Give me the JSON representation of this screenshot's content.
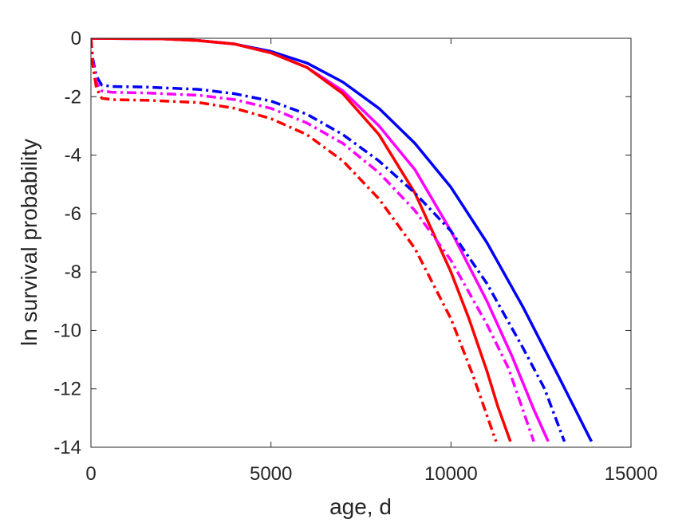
{
  "chart_data": {
    "type": "line",
    "title": "",
    "xlabel": "age, d",
    "ylabel": "ln survival probability",
    "xlim": [
      0,
      15000
    ],
    "ylim": [
      -14,
      0
    ],
    "xticks": [
      0,
      5000,
      10000,
      15000
    ],
    "xtick_labels": [
      "0",
      "5000",
      "10000",
      "15000"
    ],
    "yticks": [
      0,
      -2,
      -4,
      -6,
      -8,
      -10,
      -12,
      -14
    ],
    "ytick_labels": [
      "0",
      "-2",
      "-4",
      "-6",
      "-8",
      "-10",
      "-12",
      "-14"
    ],
    "grid": false,
    "legend": "none",
    "series": [
      {
        "color": "#0000ff",
        "style": "solid",
        "x": [
          0,
          2000,
          3000,
          4000,
          5000,
          6000,
          7000,
          8000,
          9000,
          10000,
          11000,
          12000,
          13000,
          13900
        ],
        "y": [
          0,
          -0.02,
          -0.08,
          -0.2,
          -0.45,
          -0.85,
          -1.5,
          -2.4,
          -3.6,
          -5.1,
          -7.0,
          -9.2,
          -11.6,
          -13.8
        ]
      },
      {
        "color": "#ff00ff",
        "style": "solid",
        "x": [
          0,
          2000,
          3000,
          4000,
          5000,
          6000,
          7000,
          8000,
          9000,
          10000,
          11000,
          11700,
          12300,
          12700
        ],
        "y": [
          0,
          -0.02,
          -0.08,
          -0.2,
          -0.5,
          -1.0,
          -1.8,
          -3.0,
          -4.5,
          -6.6,
          -9.0,
          -10.9,
          -12.7,
          -13.8
        ]
      },
      {
        "color": "#ff0000",
        "style": "solid",
        "x": [
          0,
          2000,
          3000,
          4000,
          5000,
          6000,
          7000,
          8000,
          9000,
          10000,
          10500,
          11000,
          11300,
          11650
        ],
        "y": [
          0,
          -0.02,
          -0.08,
          -0.2,
          -0.5,
          -1.0,
          -1.9,
          -3.3,
          -5.3,
          -8.0,
          -9.6,
          -11.4,
          -12.6,
          -13.8
        ]
      },
      {
        "color": "#0000ff",
        "style": "dashdot",
        "x": [
          0,
          50,
          150,
          300,
          600,
          1500,
          3000,
          4000,
          5000,
          6000,
          7000,
          8000,
          9000,
          10000,
          11000,
          12000,
          12600,
          13150
        ],
        "y": [
          0,
          -0.7,
          -1.3,
          -1.6,
          -1.65,
          -1.67,
          -1.75,
          -1.9,
          -2.15,
          -2.6,
          -3.3,
          -4.2,
          -5.3,
          -6.6,
          -8.4,
          -10.6,
          -12.0,
          -13.8
        ]
      },
      {
        "color": "#ff00ff",
        "style": "dashdot",
        "x": [
          0,
          50,
          150,
          300,
          600,
          1500,
          3000,
          4000,
          5000,
          6000,
          7000,
          8000,
          9000,
          10000,
          11000,
          11600,
          12300
        ],
        "y": [
          0,
          -0.8,
          -1.5,
          -1.8,
          -1.85,
          -1.87,
          -1.95,
          -2.1,
          -2.4,
          -2.9,
          -3.6,
          -4.6,
          -5.9,
          -7.6,
          -9.8,
          -11.3,
          -13.8
        ]
      },
      {
        "color": "#ff0000",
        "style": "dashdot",
        "x": [
          0,
          50,
          150,
          300,
          600,
          1500,
          3000,
          4000,
          5000,
          6000,
          7000,
          8000,
          9000,
          10000,
          10600,
          11250
        ],
        "y": [
          0,
          -0.9,
          -1.7,
          -2.05,
          -2.1,
          -2.12,
          -2.2,
          -2.4,
          -2.75,
          -3.3,
          -4.2,
          -5.5,
          -7.2,
          -9.6,
          -11.5,
          -13.8
        ]
      }
    ]
  }
}
